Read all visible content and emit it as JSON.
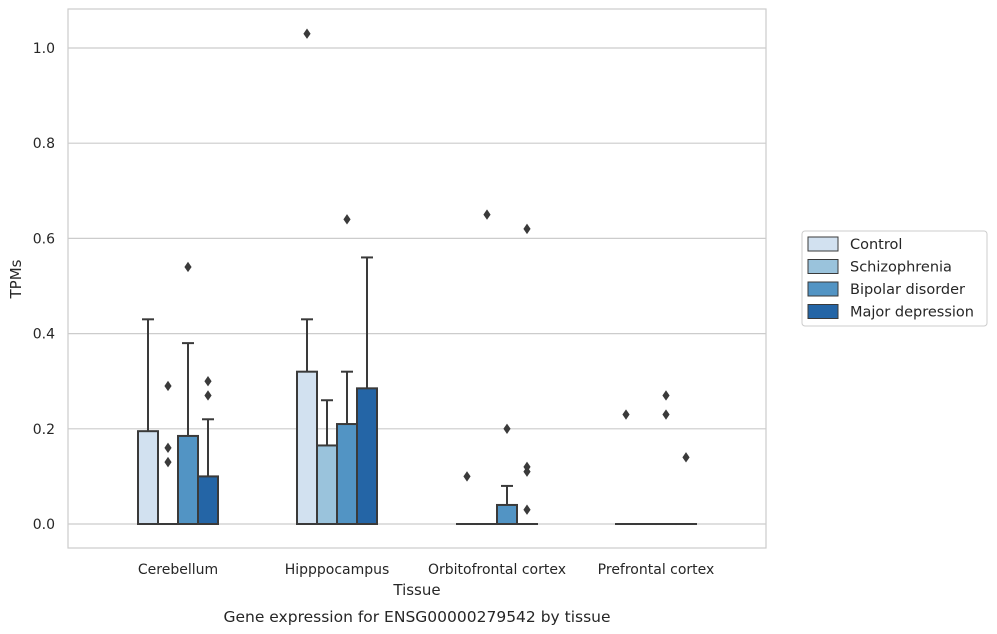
{
  "chart_data": {
    "type": "box",
    "xlabel": "Tissue",
    "ylabel": "TPMs",
    "caption": "Gene expression for ENSG00000279542 by tissue",
    "ylim": [
      -0.05,
      1.08
    ],
    "yticks": [
      "0.0",
      "0.2",
      "0.4",
      "0.6",
      "0.8",
      "1.0"
    ],
    "ytick_values": [
      0.0,
      0.2,
      0.4,
      0.6,
      0.8,
      1.0
    ],
    "grid": "horizontal",
    "legend_position": "right",
    "categories": [
      "Cerebellum",
      "Hipppocampus",
      "Orbitofrontal cortex",
      "Prefrontal cortex"
    ],
    "series": [
      {
        "name": "Control",
        "color": "#d2e1f0",
        "boxes": [
          {
            "q1": 0.0,
            "q3": 0.195,
            "median": 0.0,
            "whisker_low": 0.0,
            "whisker_high": 0.43,
            "outliers": []
          },
          {
            "q1": 0.0,
            "q3": 0.32,
            "median": 0.0,
            "whisker_low": 0.0,
            "whisker_high": 0.43,
            "outliers": [
              1.03
            ]
          },
          {
            "q1": 0.0,
            "q3": 0.0,
            "median": 0.0,
            "whisker_low": 0.0,
            "whisker_high": 0.0,
            "outliers": [
              0.1
            ]
          },
          {
            "q1": 0.0,
            "q3": 0.0,
            "median": 0.0,
            "whisker_low": 0.0,
            "whisker_high": 0.0,
            "outliers": [
              0.23
            ]
          }
        ]
      },
      {
        "name": "Schizophrenia",
        "color": "#9ac3dc",
        "boxes": [
          {
            "q1": 0.0,
            "q3": 0.0,
            "median": 0.0,
            "whisker_low": 0.0,
            "whisker_high": 0.0,
            "outliers": [
              0.29
            ]
          },
          {
            "q1": 0.0,
            "q3": 0.165,
            "median": 0.0,
            "whisker_low": 0.0,
            "whisker_high": 0.26,
            "outliers": []
          },
          {
            "q1": 0.0,
            "q3": 0.0,
            "median": 0.0,
            "whisker_low": 0.0,
            "whisker_high": 0.0,
            "outliers": [
              0.65
            ]
          },
          {
            "q1": 0.0,
            "q3": 0.0,
            "median": 0.0,
            "whisker_low": 0.0,
            "whisker_high": 0.0,
            "outliers": []
          }
        ]
      },
      {
        "name": "Bipolar disorder",
        "color": "#5294c4",
        "boxes": [
          {
            "q1": 0.0,
            "q3": 0.185,
            "median": 0.0,
            "whisker_low": 0.0,
            "whisker_high": 0.38,
            "outliers": [
              0.54
            ]
          },
          {
            "q1": 0.0,
            "q3": 0.21,
            "median": 0.0,
            "whisker_low": 0.0,
            "whisker_high": 0.32,
            "outliers": [
              0.64
            ]
          },
          {
            "q1": 0.0,
            "q3": 0.04,
            "median": 0.0,
            "whisker_low": 0.0,
            "whisker_high": 0.08,
            "outliers": [
              0.2
            ]
          },
          {
            "q1": 0.0,
            "q3": 0.0,
            "median": 0.0,
            "whisker_low": 0.0,
            "whisker_high": 0.0,
            "outliers": [
              0.27,
              0.23
            ]
          }
        ]
      },
      {
        "name": "Major depression",
        "color": "#2465a6",
        "boxes": [
          {
            "q1": 0.0,
            "q3": 0.1,
            "median": 0.0,
            "whisker_low": 0.0,
            "whisker_high": 0.22,
            "outliers": [
              0.3,
              0.27
            ]
          },
          {
            "q1": 0.0,
            "q3": 0.285,
            "median": 0.0,
            "whisker_low": 0.0,
            "whisker_high": 0.56,
            "outliers": []
          },
          {
            "q1": 0.0,
            "q3": 0.0,
            "median": 0.0,
            "whisker_low": 0.0,
            "whisker_high": 0.0,
            "outliers": [
              0.12,
              0.62
            ]
          },
          {
            "q1": 0.0,
            "q3": 0.0,
            "median": 0.0,
            "whisker_low": 0.0,
            "whisker_high": 0.0,
            "outliers": []
          }
        ]
      }
    ],
    "extra_outliers": [
      {
        "category": 0,
        "series": 1,
        "values": [
          0.16,
          0.13
        ]
      },
      {
        "category": 2,
        "series": 3,
        "values": [
          0.11,
          0.03
        ]
      },
      {
        "category": 3,
        "series": 3,
        "values": [
          0.14
        ]
      }
    ]
  }
}
